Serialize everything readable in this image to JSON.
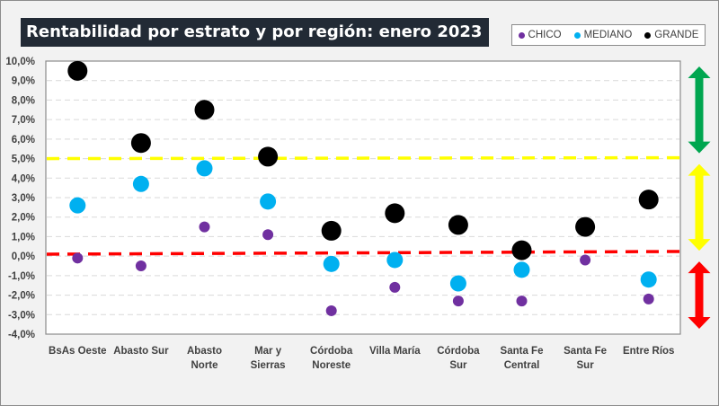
{
  "chart_data": {
    "type": "scatter",
    "title": "Rentabilidad por estrato y por región: enero 2023",
    "xlabel": "",
    "ylabel": "",
    "ylim": [
      -0.04,
      0.1
    ],
    "ytick_step": 0.01,
    "ytick_labels": [
      "10,0%",
      "9,0%",
      "8,0%",
      "7,0%",
      "6,0%",
      "5,0%",
      "4,0%",
      "3,0%",
      "2,0%",
      "1,0%",
      "0,0%",
      "-1,0%",
      "-2,0%",
      "-3,0%",
      "-4,0%"
    ],
    "grid": true,
    "legend_position": "top-right",
    "categories": [
      [
        "BsAs Oeste"
      ],
      [
        "Abasto Sur"
      ],
      [
        "Abasto",
        "Norte"
      ],
      [
        "Mar y",
        "Sierras"
      ],
      [
        "Córdoba",
        "Noreste"
      ],
      [
        "Villa María"
      ],
      [
        "Córdoba",
        "Sur"
      ],
      [
        "Santa Fe",
        "Central"
      ],
      [
        "Santa Fe",
        "Sur"
      ],
      [
        "Entre Ríos"
      ]
    ],
    "series": [
      {
        "name": "CHICO",
        "color": "#7030a0",
        "size": "small",
        "values": [
          -0.001,
          -0.005,
          0.015,
          0.011,
          -0.028,
          -0.016,
          -0.023,
          -0.023,
          -0.002,
          -0.022
        ]
      },
      {
        "name": "MEDIANO",
        "color": "#00b0f0",
        "size": "medium",
        "values": [
          0.026,
          0.037,
          0.045,
          0.028,
          -0.004,
          -0.002,
          -0.014,
          -0.007,
          null,
          -0.012
        ]
      },
      {
        "name": "GRANDE",
        "color": "#000000",
        "size": "large",
        "values": [
          0.095,
          0.058,
          0.075,
          0.051,
          0.013,
          0.022,
          0.016,
          0.003,
          0.015,
          0.029
        ]
      }
    ],
    "reference_lines": [
      {
        "name": "upper-threshold",
        "value": 0.05,
        "color": "#ffff00",
        "style": "dashed"
      },
      {
        "name": "zero-threshold",
        "value": 0.001,
        "color": "#ff0000",
        "style": "dashed"
      }
    ],
    "zone_arrows": [
      {
        "name": "green-zone",
        "color": "#00a650",
        "from": 0.05,
        "to": 0.1
      },
      {
        "name": "yellow-zone",
        "color": "#ffff00",
        "from": 0.0,
        "to": 0.05
      },
      {
        "name": "red-zone",
        "color": "#ff0000",
        "from": -0.04,
        "to": 0.0
      }
    ]
  }
}
